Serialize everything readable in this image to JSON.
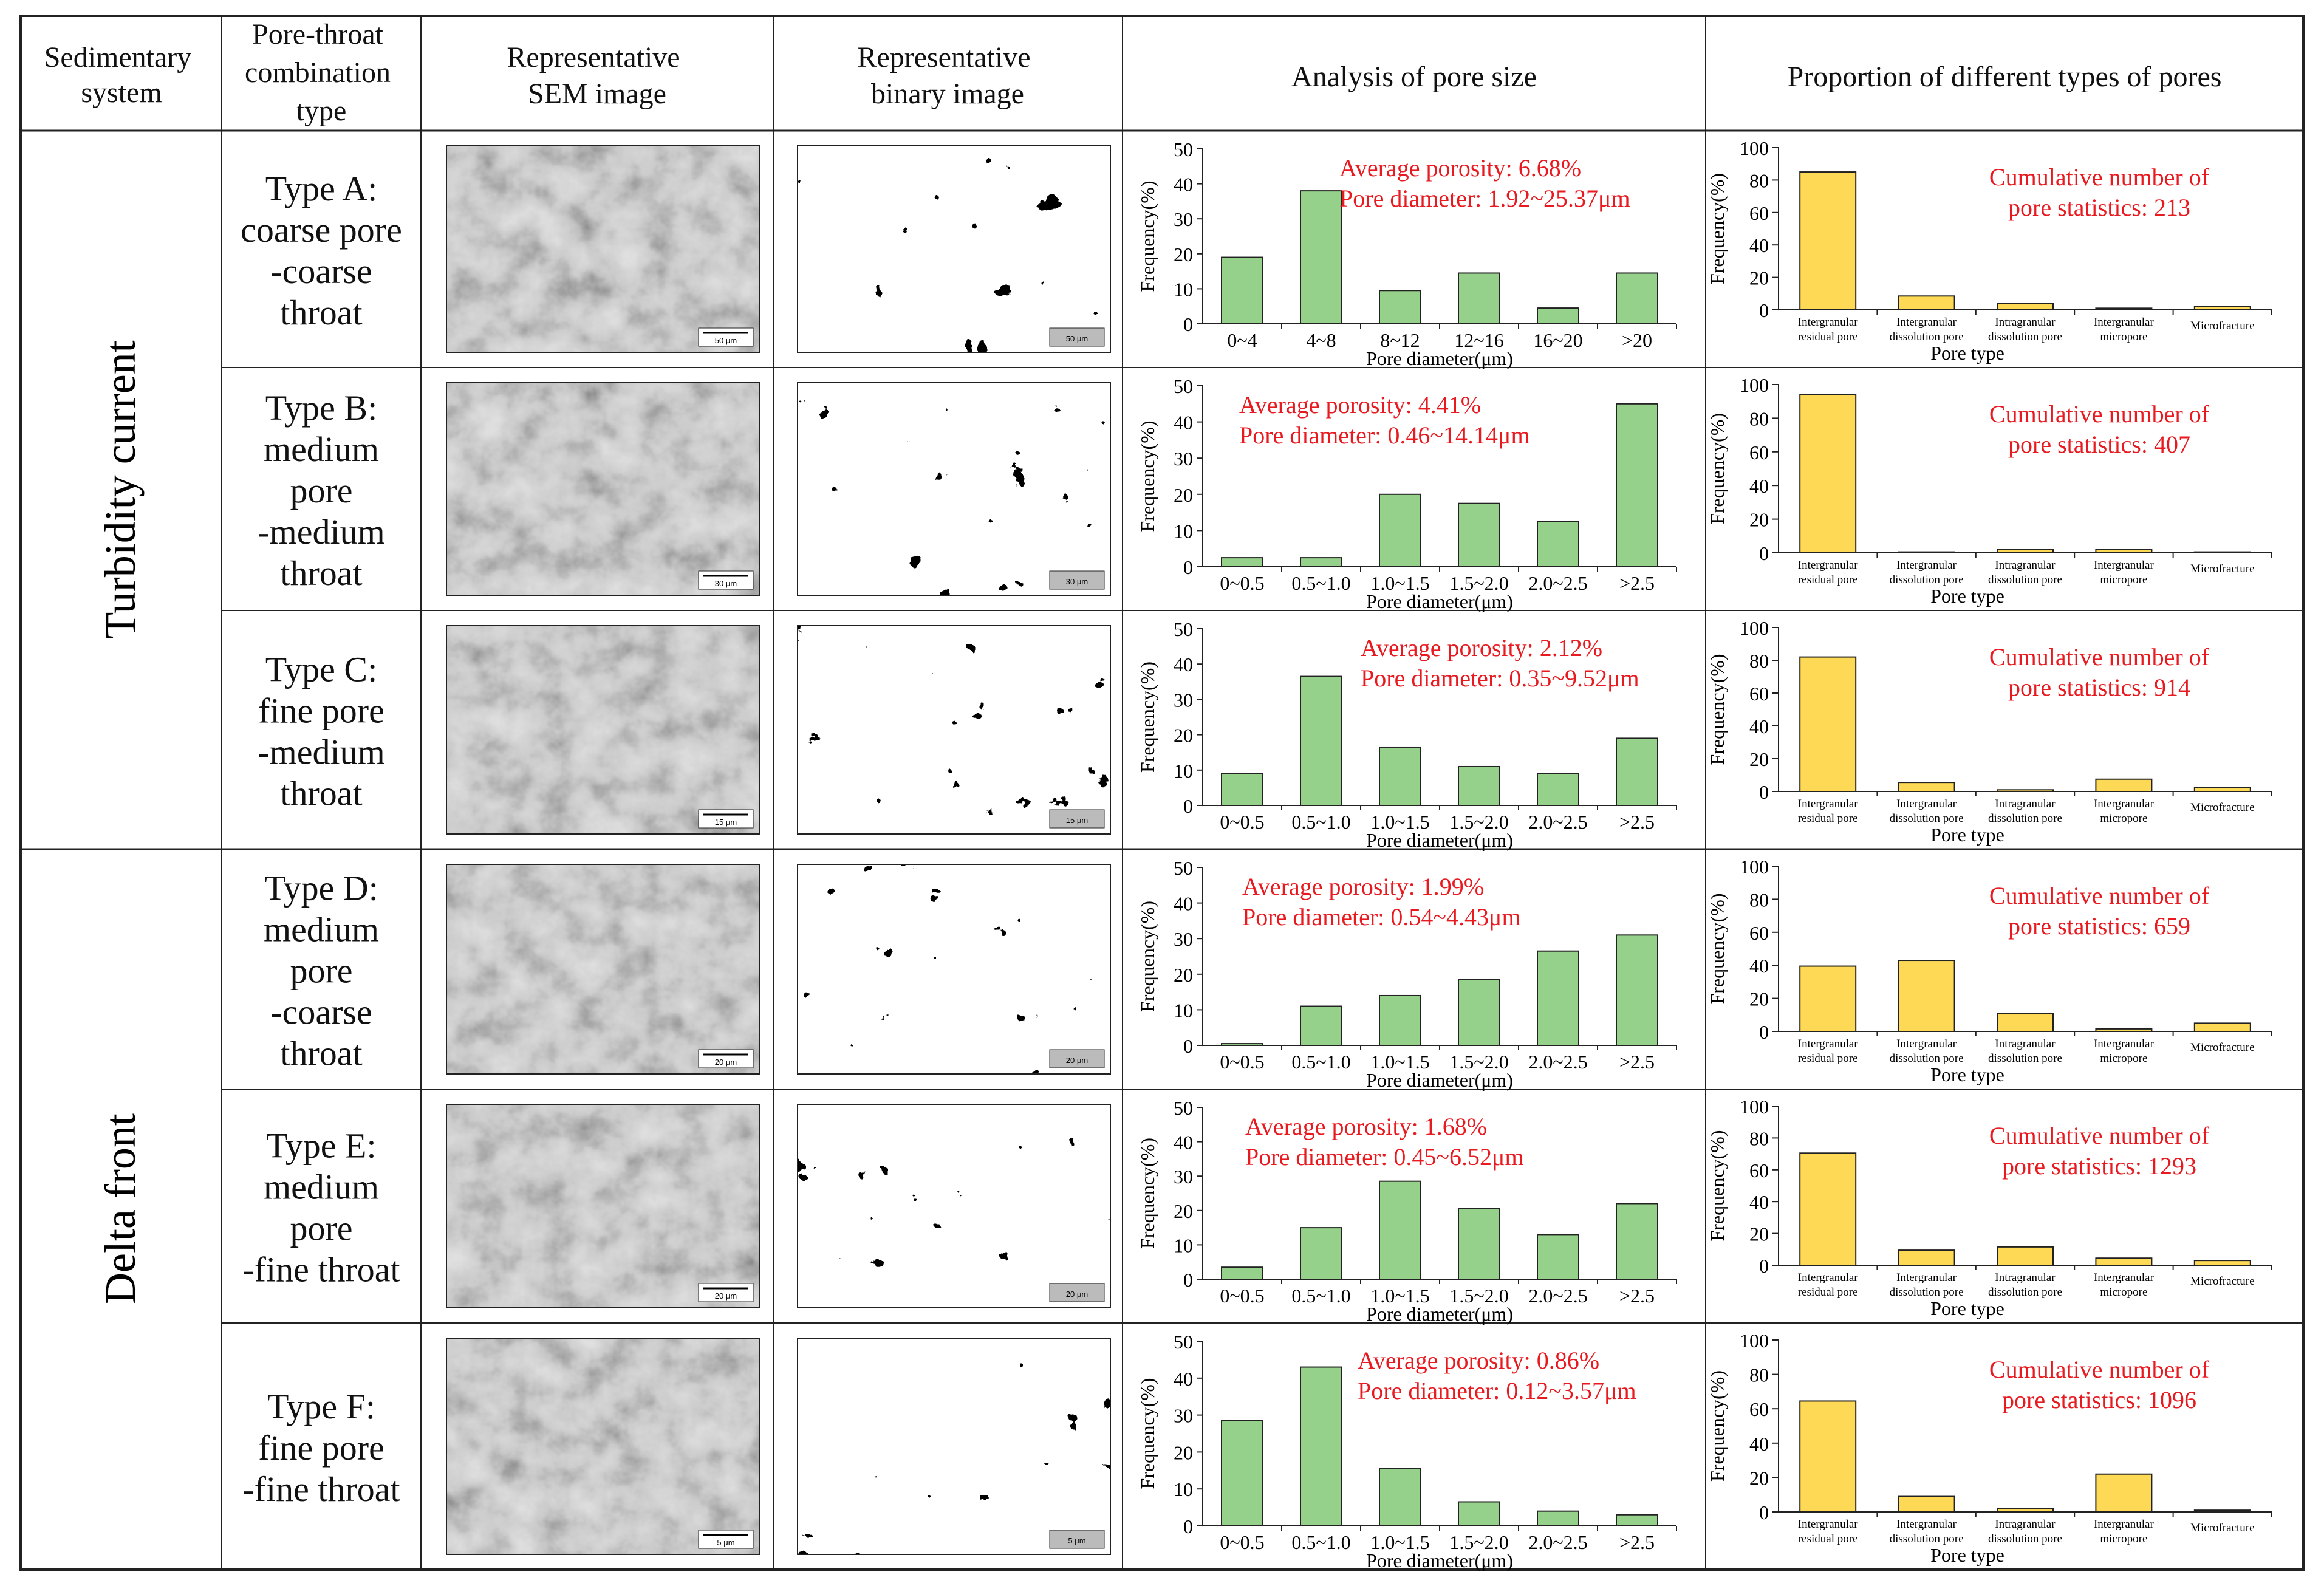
{
  "header": {
    "col1": [
      "Sedimentary",
      "system"
    ],
    "col2": [
      "Pore-throat",
      "combination",
      "type"
    ],
    "col3": [
      "Representative",
      "SEM image"
    ],
    "col4": [
      "Representative",
      "binary image"
    ],
    "col5": [
      "Analysis of pore size"
    ],
    "col6": [
      "Proportion of different types of pores"
    ]
  },
  "systems": [
    "Turbidity current",
    "Delta front"
  ],
  "size_chart": {
    "ylabel": "Frequency(%)",
    "xlabel": "Pore diameter(μm)",
    "yticks": [
      "0",
      "10",
      "20",
      "30",
      "40",
      "50"
    ],
    "color": "#96d18c",
    "stroke": "#222222"
  },
  "type_chart": {
    "ylabel": "Frequency(%)",
    "xlabel": "Pore type",
    "yticks": [
      "0",
      "20",
      "40",
      "60",
      "80",
      "100"
    ],
    "categories": [
      [
        "Intergranular",
        "residual pore"
      ],
      [
        "Intergranular",
        "dissolution pore"
      ],
      [
        "Intragranular",
        "dissolution pore"
      ],
      [
        "Intergranular",
        "micropore"
      ],
      [
        "Microfracture"
      ]
    ],
    "color": "#fdd956",
    "stroke": "#222222"
  },
  "annotation_color": "#e8191f",
  "rows": [
    {
      "type_label": [
        "Type A:",
        "coarse pore",
        "-coarse",
        "throat"
      ],
      "sem_scale": "50 μm",
      "binary_scale": "50 μm",
      "porosity": "Average porosity: 6.68%",
      "diameter": "Pore diameter: 1.92~25.37μm",
      "size_categories": [
        "0~4",
        "4~8",
        "8~12",
        "12~16",
        "16~20",
        ">20"
      ],
      "size_values": [
        19,
        38,
        9.5,
        14.5,
        4.5,
        14.5
      ],
      "cumulative": [
        "Cumulative number of",
        "pore statistics: 213"
      ],
      "type_values": [
        85,
        8.5,
        4,
        1,
        2
      ]
    },
    {
      "type_label": [
        "Type B:",
        "medium",
        "pore",
        "-medium",
        "throat"
      ],
      "sem_scale": "30 μm",
      "binary_scale": "30 μm",
      "porosity": "Average porosity: 4.41%",
      "diameter": "Pore diameter: 0.46~14.14μm",
      "size_categories": [
        "0~0.5",
        "0.5~1.0",
        "1.0~1.5",
        "1.5~2.0",
        "2.0~2.5",
        ">2.5"
      ],
      "size_values": [
        2.5,
        2.5,
        20,
        17.5,
        12.5,
        45
      ],
      "cumulative": [
        "Cumulative number of",
        "pore statistics: 407"
      ],
      "type_values": [
        94,
        0.5,
        2,
        2,
        0.5
      ]
    },
    {
      "type_label": [
        "Type C:",
        "fine pore",
        "-medium",
        "throat"
      ],
      "sem_scale": "15 μm",
      "binary_scale": "15 μm",
      "porosity": "Average porosity: 2.12%",
      "diameter": "Pore diameter: 0.35~9.52μm",
      "size_categories": [
        "0~0.5",
        "0.5~1.0",
        "1.0~1.5",
        "1.5~2.0",
        "2.0~2.5",
        ">2.5"
      ],
      "size_values": [
        9,
        36.5,
        16.5,
        11,
        9,
        19
      ],
      "cumulative": [
        "Cumulative number of",
        "pore statistics: 914"
      ],
      "type_values": [
        82,
        5.5,
        1,
        7.5,
        2.5
      ]
    },
    {
      "type_label": [
        "Type D:",
        "medium",
        "pore",
        "-coarse",
        "throat"
      ],
      "sem_scale": "20 μm",
      "binary_scale": "20 μm",
      "porosity": "Average porosity: 1.99%",
      "diameter": "Pore diameter: 0.54~4.43μm",
      "size_categories": [
        "0~0.5",
        "0.5~1.0",
        "1.0~1.5",
        "1.5~2.0",
        "2.0~2.5",
        ">2.5"
      ],
      "size_values": [
        0.5,
        11,
        14,
        18.5,
        26.5,
        31
      ],
      "cumulative": [
        "Cumulative number of",
        "pore statistics: 659"
      ],
      "type_values": [
        39.5,
        43,
        11,
        1.5,
        5
      ]
    },
    {
      "type_label": [
        "Type E:",
        "medium",
        "pore",
        "-fine throat"
      ],
      "sem_scale": "20 μm",
      "binary_scale": "20 μm",
      "porosity": "Average porosity: 1.68%",
      "diameter": "Pore diameter: 0.45~6.52μm",
      "size_categories": [
        "0~0.5",
        "0.5~1.0",
        "1.0~1.5",
        "1.5~2.0",
        "2.0~2.5",
        ">2.5"
      ],
      "size_values": [
        3.5,
        15,
        28.5,
        20.5,
        13,
        22
      ],
      "cumulative": [
        "Cumulative number of",
        "pore statistics: 1293"
      ],
      "type_values": [
        70.5,
        9.5,
        11.5,
        4.5,
        3
      ]
    },
    {
      "type_label": [
        "Type F:",
        "fine pore",
        "-fine throat"
      ],
      "sem_scale": "5 μm",
      "binary_scale": "5 μm",
      "porosity": "Average porosity: 0.86%",
      "diameter": "Pore diameter: 0.12~3.57μm",
      "size_categories": [
        "0~0.5",
        "0.5~1.0",
        "1.0~1.5",
        "1.5~2.0",
        "2.0~2.5",
        ">2.5"
      ],
      "size_values": [
        28.5,
        43,
        15.5,
        6.5,
        4,
        3
      ],
      "cumulative": [
        "Cumulative number of",
        "pore statistics: 1096"
      ],
      "type_values": [
        64.5,
        9,
        2,
        22,
        1
      ]
    }
  ]
}
